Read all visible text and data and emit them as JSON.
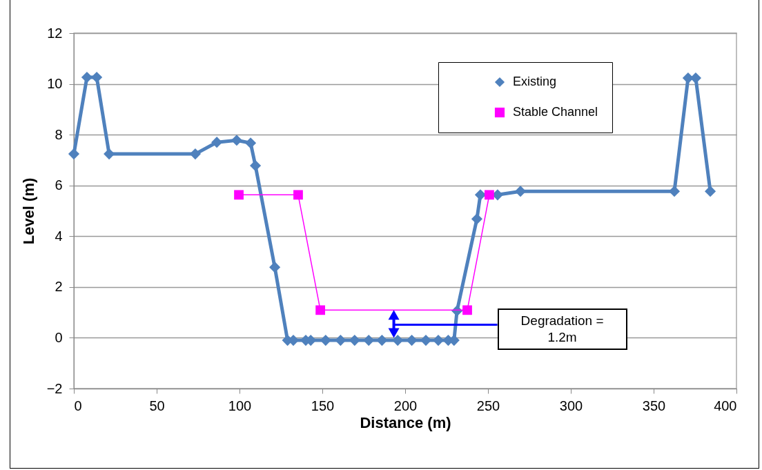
{
  "chart_data": {
    "type": "line",
    "xlabel": "Distance  (m)",
    "ylabel": "Level (m)",
    "xlim": [
      0,
      400
    ],
    "xticks": [
      0,
      50,
      100,
      150,
      200,
      250,
      300,
      350,
      400
    ],
    "ylim": [
      -2,
      12
    ],
    "yticks": [
      -2,
      0,
      2,
      4,
      6,
      8,
      10,
      12
    ],
    "grid": "y",
    "legend": "top right",
    "series": [
      {
        "name": "Existing",
        "color": "#4f81bd",
        "marker": "diamond",
        "x": [
          0,
          7.9,
          13.8,
          21.3,
          73.3,
          86.3,
          98.3,
          106.7,
          109.6,
          121.3,
          129,
          132.5,
          140,
          143,
          152,
          161,
          169.5,
          178,
          186,
          195.5,
          204,
          212.5,
          220,
          226,
          229.5,
          231.3,
          243.3,
          245.4,
          255.8,
          269.6,
          362.5,
          370.8,
          375.4,
          384.2
        ],
        "values": [
          7.24,
          10.26,
          10.26,
          7.24,
          7.24,
          7.7,
          7.78,
          7.67,
          6.78,
          2.78,
          -0.1,
          -0.1,
          -0.1,
          -0.1,
          -0.1,
          -0.1,
          -0.1,
          -0.1,
          -0.1,
          -0.1,
          -0.1,
          -0.1,
          -0.1,
          -0.1,
          -0.1,
          1.06,
          4.68,
          5.63,
          5.63,
          5.77,
          5.77,
          10.23,
          10.23,
          5.77
        ]
      },
      {
        "name": "Stable Channel",
        "color": "#ff00ff",
        "marker": "square",
        "x": [
          99.6,
          135.4,
          148.8,
          237.5,
          250.8
        ],
        "values": [
          5.63,
          5.63,
          1.09,
          1.09,
          5.63
        ]
      }
    ],
    "annotations": [
      "Degradation = 1.2m"
    ]
  }
}
